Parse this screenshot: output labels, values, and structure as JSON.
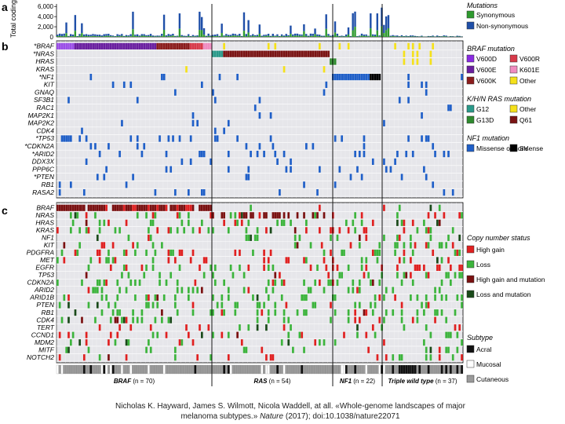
{
  "caption": {
    "line1": "Nicholas K. Hayward, James S. Wilmott, Nicola Waddell, at all. «Whole-genome landscapes of major",
    "line2a": "melanoma subtypes.»",
    "line2b": "Nature",
    "line2c": "(2017);   doi:10.1038/nature22071"
  },
  "chart_data": [
    {
      "type": "bar",
      "panel_label": "a",
      "ylabel": "Total coding mutations",
      "yticks": [
        "2,000",
        "4,000",
        "6,000"
      ],
      "ylim": [
        0,
        6500
      ],
      "legend_title": "Mutations",
      "series": [
        {
          "name": "Synonymous",
          "color": "#2e9a2e"
        },
        {
          "name": "Non-synonymous",
          "color": "#1f4fa8"
        }
      ]
    },
    {
      "type": "heatmap",
      "panel_label": "b",
      "rows": [
        "BRAF",
        "NRAS",
        "HRAS",
        "KRAS",
        "NF1",
        "KIT",
        "GNAQ",
        "SF3B1",
        "RAC1",
        "MAP2K1",
        "MAP2K2",
        "CDK4",
        "TP53",
        "CDKN2A",
        "ARID2",
        "DDX3X",
        "PPP6C",
        "PTEN",
        "RB1",
        "RASA2"
      ],
      "row_prefix": [
        "*",
        "*",
        "",
        "",
        "*",
        "",
        "",
        "",
        "",
        "",
        "",
        "",
        "*",
        "*",
        "*",
        "",
        "",
        "*",
        "",
        ""
      ],
      "legend_groups": [
        {
          "title": "BRAF mutation",
          "items": [
            {
              "name": "V600D",
              "color": "#8a2be2"
            },
            {
              "name": "V600R",
              "color": "#d83a4a"
            },
            {
              "name": "V600E",
              "color": "#6a1fa0"
            },
            {
              "name": "K601E",
              "color": "#f08cc0"
            },
            {
              "name": "V600K",
              "color": "#8b1c1c"
            },
            {
              "name": "Other",
              "color": "#f5e11a"
            }
          ]
        },
        {
          "title": "K/H/N RAS mutation",
          "items": [
            {
              "name": "G12",
              "color": "#2a9a8a"
            },
            {
              "name": "Other",
              "color": "#f5e11a"
            },
            {
              "name": "G13D",
              "color": "#2e8a2e"
            },
            {
              "name": "Q61",
              "color": "#7a1414"
            }
          ]
        },
        {
          "title": "NF1 mutation",
          "items": [
            {
              "name": "Missense or nonsense",
              "color": "#1f5fc8"
            },
            {
              "name": "SV",
              "color": "#000000"
            }
          ]
        }
      ]
    },
    {
      "type": "heatmap",
      "panel_label": "c",
      "rows": [
        "BRAF",
        "NRAS",
        "HRAS",
        "KRAS",
        "NF1",
        "KIT",
        "PDGFRA",
        "MET",
        "EGFR",
        "TP53",
        "CDKN2A",
        "ARID2",
        "ARID1B",
        "PTEN",
        "RB1",
        "CDK4",
        "TERT",
        "CCND1",
        "MDM2",
        "MITF",
        "NOTCH2"
      ],
      "legend_groups": [
        {
          "title": "Copy number status",
          "items": [
            {
              "name": "High gain",
              "color": "#e02020"
            },
            {
              "name": "Loss",
              "color": "#3cb43c"
            },
            {
              "name": "High gain and mutation",
              "color": "#7a1010"
            },
            {
              "name": "Loss and mutation",
              "color": "#1a4a1a"
            }
          ]
        },
        {
          "title": "Subtype",
          "items": [
            {
              "name": "Acral",
              "color": "#111111"
            },
            {
              "name": "Mucosal",
              "color": "#ffffff"
            },
            {
              "name": "Cutaneous",
              "color": "#9a9a9a"
            }
          ]
        }
      ],
      "groups": [
        {
          "name": "BRAF",
          "n": 70
        },
        {
          "name": "RAS",
          "n": 54
        },
        {
          "name": "NF1",
          "n": 22
        },
        {
          "name": "Triple wild type",
          "n": 37
        }
      ]
    }
  ]
}
